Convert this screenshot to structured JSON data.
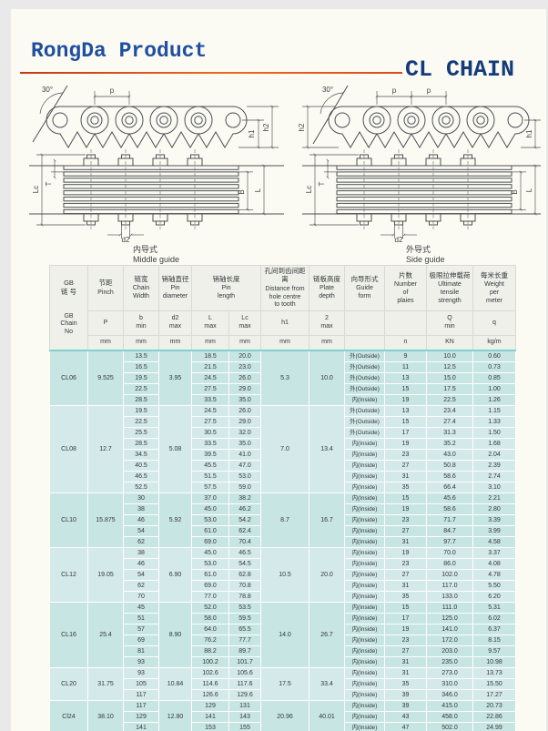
{
  "page": {
    "brand": "RongDa Product",
    "product": "CL CHAIN"
  },
  "diagrams": {
    "left": {
      "caption_zh": "内导式",
      "caption_en": "Middle guide",
      "labels": {
        "angle": "30°",
        "p": "p",
        "h2": "h2",
        "h1": "h1",
        "lc": "Lc",
        "t": "T",
        "b": "B",
        "l": "L",
        "d2": "d2"
      }
    },
    "right": {
      "caption_zh": "外导式",
      "caption_en": "Side guide",
      "labels": {
        "angle": "30°",
        "p1": "p",
        "p2": "p",
        "h2": "h2",
        "h1": "h1",
        "lc": "Lc",
        "t": "T",
        "b": "B",
        "l": "L",
        "d2": "d2"
      }
    }
  },
  "table": {
    "header": {
      "chain_no_zh": "GB\n链 号",
      "chain_no_en": "GB\nChain\nNo",
      "cols": [
        {
          "zh": "节距",
          "en": "Pinch",
          "sym": "P",
          "unit": "mm"
        },
        {
          "zh": "链宽",
          "en": "Chain\nWidth",
          "sym": "b\nmin",
          "unit": "mm"
        },
        {
          "zh": "销轴直径",
          "en": "Pin\ndiameter",
          "sym": "d2\nmax",
          "unit": "mm"
        },
        {
          "zh": "销轴长度",
          "en": "Pin\nlength",
          "sym_l": "L\nmax",
          "sym_lc": "Lc\nmax",
          "unit_l": "mm",
          "unit_lc": "mm"
        },
        {
          "zh": "孔间到齿间距离",
          "en": "Distance from\nhole centre\nto tooth",
          "sym": "h1",
          "unit": "mm"
        },
        {
          "zh": "链板高度",
          "en": "Plate\ndepth",
          "sym": "2\nmax",
          "unit": "mm"
        },
        {
          "zh": "向导形式",
          "en": "Guide\nform",
          "sym": "",
          "unit": ""
        },
        {
          "zh": "片数",
          "en": "Number\nof\nplaies",
          "sym": "",
          "unit": "n"
        },
        {
          "zh": "极限拉伸载荷",
          "en": "Ultimate\ntensile\nstrength",
          "sym": "Q\nmin",
          "unit": "KN"
        },
        {
          "zh": "每米长重",
          "en": "Weight\nper\nmeter",
          "sym": "q",
          "unit": "kg/m"
        }
      ]
    },
    "groups": [
      {
        "no": "CL06",
        "p": "9.525",
        "d2": "3.95",
        "h1": "5.3",
        "h2": "10.0",
        "rows": [
          {
            "b": "13.5",
            "L": "18.5",
            "Lc": "20.0",
            "guide": "外(Outside)",
            "n": "9",
            "Q": "10.0",
            "w": "0.60"
          },
          {
            "b": "16.5",
            "L": "21.5",
            "Lc": "23.0",
            "guide": "外(Outside)",
            "n": "11",
            "Q": "12.5",
            "w": "0.73"
          },
          {
            "b": "19.5",
            "L": "24.5",
            "Lc": "26.0",
            "guide": "外(Outside)",
            "n": "13",
            "Q": "15.0",
            "w": "0.85"
          },
          {
            "b": "22.5",
            "L": "27.5",
            "Lc": "29.0",
            "guide": "外(Outside)",
            "n": "15",
            "Q": "17.5",
            "w": "1.00"
          },
          {
            "b": "28.5",
            "L": "33.5",
            "Lc": "35.0",
            "guide": "内(Inside)",
            "n": "19",
            "Q": "22.5",
            "w": "1.26"
          }
        ]
      },
      {
        "no": "CL08",
        "p": "12.7",
        "d2": "5.08",
        "h1": "7.0",
        "h2": "13.4",
        "rows": [
          {
            "b": "19.5",
            "L": "24.5",
            "Lc": "26.0",
            "guide": "外(Outside)",
            "n": "13",
            "Q": "23.4",
            "w": "1.15"
          },
          {
            "b": "22.5",
            "L": "27.5",
            "Lc": "29.0",
            "guide": "外(Outside)",
            "n": "15",
            "Q": "27.4",
            "w": "1.33"
          },
          {
            "b": "25.5",
            "L": "30.5",
            "Lc": "32.0",
            "guide": "外(Outside)",
            "n": "17",
            "Q": "31.3",
            "w": "1.50"
          },
          {
            "b": "28.5",
            "L": "33.5",
            "Lc": "35.0",
            "guide": "内(Inside)",
            "n": "19",
            "Q": "35.2",
            "w": "1.68"
          },
          {
            "b": "34.5",
            "L": "39.5",
            "Lc": "41.0",
            "guide": "内(Inside)",
            "n": "23",
            "Q": "43.0",
            "w": "2.04"
          },
          {
            "b": "40.5",
            "L": "45.5",
            "Lc": "47.0",
            "guide": "内(Inside)",
            "n": "27",
            "Q": "50.8",
            "w": "2.39"
          },
          {
            "b": "46.5",
            "L": "51.5",
            "Lc": "53.0",
            "guide": "内(Inside)",
            "n": "31",
            "Q": "58.6",
            "w": "2.74"
          },
          {
            "b": "52.5",
            "L": "57.5",
            "Lc": "59.0",
            "guide": "内(Inside)",
            "n": "35",
            "Q": "66.4",
            "w": "3.10"
          }
        ]
      },
      {
        "no": "CL10",
        "p": "15.875",
        "d2": "5.92",
        "h1": "8.7",
        "h2": "16.7",
        "rows": [
          {
            "b": "30",
            "L": "37.0",
            "Lc": "38.2",
            "guide": "内(Inside)",
            "n": "15",
            "Q": "45.6",
            "w": "2.21"
          },
          {
            "b": "38",
            "L": "45.0",
            "Lc": "46.2",
            "guide": "内(Inside)",
            "n": "19",
            "Q": "58.6",
            "w": "2.80"
          },
          {
            "b": "46",
            "L": "53.0",
            "Lc": "54.2",
            "guide": "内(Inside)",
            "n": "23",
            "Q": "71.7",
            "w": "3.39"
          },
          {
            "b": "54",
            "L": "61.0",
            "Lc": "62.4",
            "guide": "内(Inside)",
            "n": "27",
            "Q": "84.7",
            "w": "3.99"
          },
          {
            "b": "62",
            "L": "69.0",
            "Lc": "70.4",
            "guide": "内(Inside)",
            "n": "31",
            "Q": "97.7",
            "w": "4.58"
          }
        ]
      },
      {
        "no": "CL12",
        "p": "19.05",
        "d2": "6.90",
        "h1": "10.5",
        "h2": "20.0",
        "rows": [
          {
            "b": "38",
            "L": "45.0",
            "Lc": "46.5",
            "guide": "内(Inside)",
            "n": "19",
            "Q": "70.0",
            "w": "3.37"
          },
          {
            "b": "46",
            "L": "53.0",
            "Lc": "54.5",
            "guide": "内(Inside)",
            "n": "23",
            "Q": "86.0",
            "w": "4.08"
          },
          {
            "b": "54",
            "L": "61.0",
            "Lc": "62.8",
            "guide": "内(Inside)",
            "n": "27",
            "Q": "102.0",
            "w": "4.78"
          },
          {
            "b": "62",
            "L": "69.0",
            "Lc": "70.8",
            "guide": "内(Inside)",
            "n": "31",
            "Q": "117.0",
            "w": "5.50"
          },
          {
            "b": "70",
            "L": "77.0",
            "Lc": "78.8",
            "guide": "内(Inside)",
            "n": "35",
            "Q": "133.0",
            "w": "6.20"
          }
        ]
      },
      {
        "no": "CL16",
        "p": "25.4",
        "d2": "8.90",
        "h1": "14.0",
        "h2": "26.7",
        "rows": [
          {
            "b": "45",
            "L": "52.0",
            "Lc": "53.5",
            "guide": "内(Inside)",
            "n": "15",
            "Q": "111.0",
            "w": "5.31"
          },
          {
            "b": "51",
            "L": "58.0",
            "Lc": "59.5",
            "guide": "内(Inside)",
            "n": "17",
            "Q": "125.0",
            "w": "6.02"
          },
          {
            "b": "57",
            "L": "64.0",
            "Lc": "65.5",
            "guide": "内(Inside)",
            "n": "19",
            "Q": "141.0",
            "w": "6.37"
          },
          {
            "b": "69",
            "L": "76.2",
            "Lc": "77.7",
            "guide": "内(Inside)",
            "n": "23",
            "Q": "172.0",
            "w": "8.15"
          },
          {
            "b": "81",
            "L": "88.2",
            "Lc": "89.7",
            "guide": "内(Inside)",
            "n": "27",
            "Q": "203.0",
            "w": "9.57"
          },
          {
            "b": "93",
            "L": "100.2",
            "Lc": "101.7",
            "guide": "内(Inside)",
            "n": "31",
            "Q": "235.0",
            "w": "10.98"
          }
        ]
      },
      {
        "no": "CL20",
        "p": "31.75",
        "d2": "10.84",
        "h1": "17.5",
        "h2": "33.4",
        "rows": [
          {
            "b": "93",
            "L": "102.6",
            "Lc": "105.6",
            "guide": "内(Inside)",
            "n": "31",
            "Q": "273.0",
            "w": "13.73"
          },
          {
            "b": "105",
            "L": "114.6",
            "Lc": "117.6",
            "guide": "内(Inside)",
            "n": "35",
            "Q": "310.0",
            "w": "15.50"
          },
          {
            "b": "117",
            "L": "126.6",
            "Lc": "129.6",
            "guide": "内(Inside)",
            "n": "39",
            "Q": "346.0",
            "w": "17.27"
          }
        ]
      },
      {
        "no": "Cl24",
        "p": "38.10",
        "d2": "12.80",
        "h1": "20.96",
        "h2": "40.01",
        "rows": [
          {
            "b": "117",
            "L": "129",
            "Lc": "131",
            "guide": "内(Inside)",
            "n": "39",
            "Q": "415.0",
            "w": "20.73"
          },
          {
            "b": "129",
            "L": "141",
            "Lc": "143",
            "guide": "内(Inside)",
            "n": "43",
            "Q": "458.0",
            "w": "22.86"
          },
          {
            "b": "141",
            "L": "153",
            "Lc": "155",
            "guide": "内(Inside)",
            "n": "47",
            "Q": "502.0",
            "w": "24.99"
          }
        ]
      }
    ]
  }
}
